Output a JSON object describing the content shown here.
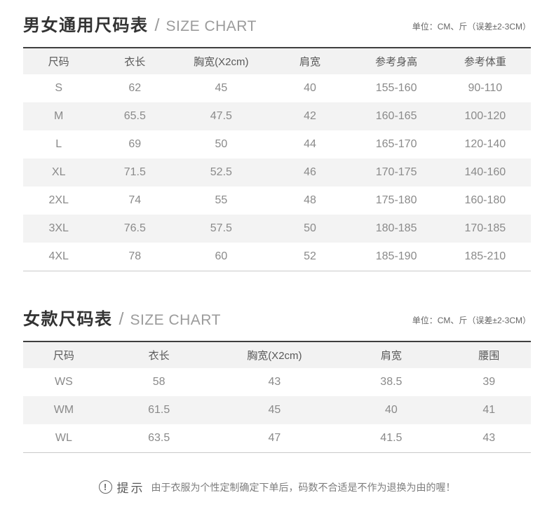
{
  "chart_data": [
    {
      "type": "table",
      "title": "男女通用尺码表",
      "separator": "/",
      "subtitle": "SIZE CHART",
      "unit": "单位：CM、斤（误差±2-3CM）",
      "columns": [
        "尺码",
        "衣长",
        "胸宽(X2cm)",
        "肩宽",
        "参考身高",
        "参考体重"
      ],
      "rows": [
        [
          "S",
          "62",
          "45",
          "40",
          "155-160",
          "90-110"
        ],
        [
          "M",
          "65.5",
          "47.5",
          "42",
          "160-165",
          "100-120"
        ],
        [
          "L",
          "69",
          "50",
          "44",
          "165-170",
          "120-140"
        ],
        [
          "XL",
          "71.5",
          "52.5",
          "46",
          "170-175",
          "140-160"
        ],
        [
          "2XL",
          "74",
          "55",
          "48",
          "175-180",
          "160-180"
        ],
        [
          "3XL",
          "76.5",
          "57.5",
          "50",
          "180-185",
          "170-185"
        ],
        [
          "4XL",
          "78",
          "60",
          "52",
          "185-190",
          "185-210"
        ]
      ]
    },
    {
      "type": "table",
      "title": "女款尺码表",
      "separator": "/",
      "subtitle": "SIZE CHART",
      "unit": "单位：CM、斤（误差±2-3CM）",
      "columns": [
        "尺码",
        "衣长",
        "胸宽(X2cm)",
        "肩宽",
        "腰围"
      ],
      "rows": [
        [
          "WS",
          "58",
          "43",
          "38.5",
          "39"
        ],
        [
          "WM",
          "61.5",
          "45",
          "40",
          "41"
        ],
        [
          "WL",
          "63.5",
          "47",
          "41.5",
          "43"
        ]
      ]
    }
  ],
  "notice": {
    "icon": "exclamation-circle-icon",
    "glyph": "!",
    "label": "提示",
    "text": "由于衣服为个性定制确定下单后，码数不合适是不作为退换为由的喔！"
  },
  "colors": {
    "table_top_border": "#3f3f3f",
    "table_bottom_border": "#c9c9c9",
    "header_bg": "#f2f2f2",
    "stripe_bg": "#f3f3f3",
    "title_text": "#333333",
    "subtitle_text": "#9b9b9b",
    "header_text": "#595959",
    "cell_text": "#8a8a8a",
    "notice_text": "#7d7d7d"
  }
}
